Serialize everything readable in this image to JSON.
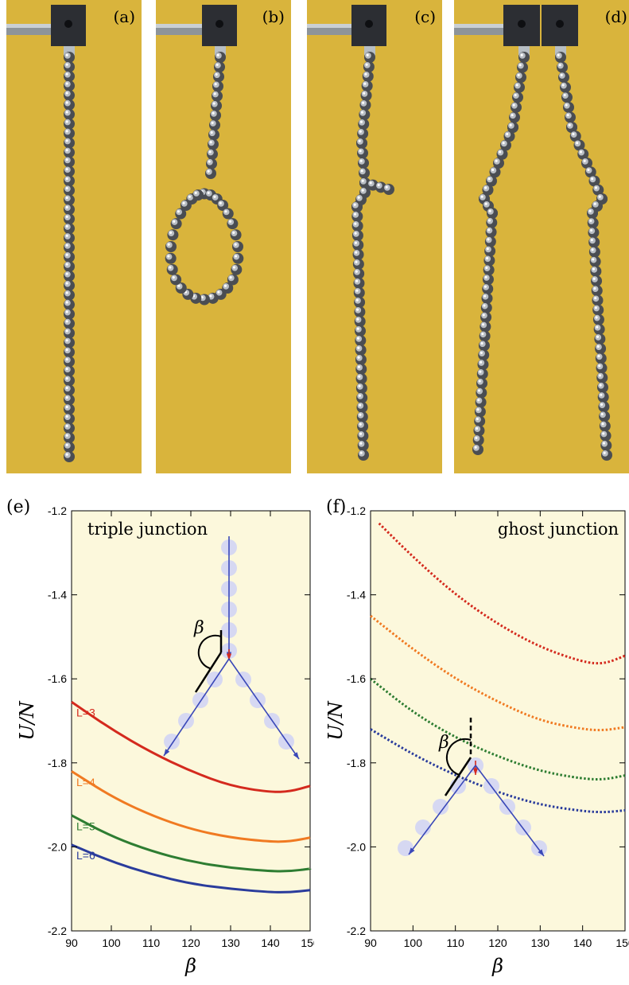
{
  "photos": [
    {
      "label": "(a)",
      "shape": "straight"
    },
    {
      "label": "(b)",
      "shape": "loop"
    },
    {
      "label": "(c)",
      "shape": "kink"
    },
    {
      "label": "(d)",
      "shape": "double"
    }
  ],
  "colors": {
    "photo_background": "#d9b43c",
    "plot_background": "#fcf8dc",
    "red": "#d42a1e",
    "orange": "#f07a22",
    "green": "#2e7d32",
    "blue": "#2a3c9c",
    "bead_arrow": "#3a48b8",
    "junction_arrow": "#d42a1e"
  },
  "chart_data": [
    {
      "panel": "(e)",
      "type": "line",
      "title": "triple junction",
      "xlabel": "β",
      "ylabel": "U/N",
      "xlim": [
        90,
        150
      ],
      "ylim": [
        -2.2,
        -1.2
      ],
      "xticks": [
        "90",
        "100",
        "110",
        "120",
        "130",
        "140",
        "150"
      ],
      "yticks": [
        "-1.2",
        "-1.4",
        "-1.6",
        "-1.8",
        "-2.0",
        "-2.2"
      ],
      "style": "solid",
      "inset_label": "β",
      "series": [
        {
          "name": "L=3",
          "color": "#d42a1e",
          "x": [
            90,
            100,
            110,
            120,
            130,
            140,
            145,
            150
          ],
          "values": [
            -1.655,
            -1.72,
            -1.775,
            -1.82,
            -1.855,
            -1.87,
            -1.868,
            -1.855
          ]
        },
        {
          "name": "L=4",
          "color": "#f07a22",
          "x": [
            90,
            100,
            110,
            120,
            130,
            140,
            145,
            150
          ],
          "values": [
            -1.82,
            -1.88,
            -1.925,
            -1.958,
            -1.978,
            -1.988,
            -1.987,
            -1.978
          ]
        },
        {
          "name": "L=5",
          "color": "#2e7d32",
          "x": [
            90,
            100,
            110,
            120,
            130,
            140,
            145,
            150
          ],
          "values": [
            -1.925,
            -1.975,
            -2.01,
            -2.035,
            -2.05,
            -2.058,
            -2.058,
            -2.052
          ]
        },
        {
          "name": "L=6",
          "color": "#2a3c9c",
          "x": [
            90,
            100,
            110,
            120,
            130,
            140,
            145,
            150
          ],
          "values": [
            -1.995,
            -2.035,
            -2.065,
            -2.088,
            -2.1,
            -2.108,
            -2.108,
            -2.103
          ]
        }
      ]
    },
    {
      "panel": "(f)",
      "type": "line",
      "title": "ghost junction",
      "xlabel": "β",
      "ylabel": "U/N",
      "xlim": [
        90,
        150
      ],
      "ylim": [
        -2.2,
        -1.2
      ],
      "xticks": [
        "90",
        "100",
        "110",
        "120",
        "130",
        "140",
        "150"
      ],
      "yticks": [
        "-1.2",
        "-1.4",
        "-1.6",
        "-1.8",
        "-2.0",
        "-2.2"
      ],
      "style": "dotted",
      "inset_label": "β",
      "series": [
        {
          "color": "#d42a1e",
          "x": [
            92,
            100,
            110,
            120,
            130,
            140,
            145,
            150
          ],
          "values": [
            -1.23,
            -1.31,
            -1.4,
            -1.47,
            -1.525,
            -1.56,
            -1.565,
            -1.545
          ]
        },
        {
          "color": "#f07a22",
          "x": [
            90,
            100,
            110,
            120,
            130,
            140,
            145,
            150
          ],
          "values": [
            -1.45,
            -1.53,
            -1.6,
            -1.655,
            -1.7,
            -1.72,
            -1.723,
            -1.715
          ]
        },
        {
          "color": "#2e7d32",
          "x": [
            90,
            100,
            110,
            120,
            130,
            140,
            145,
            150
          ],
          "values": [
            -1.6,
            -1.68,
            -1.74,
            -1.785,
            -1.82,
            -1.838,
            -1.84,
            -1.83
          ]
        },
        {
          "color": "#2a3c9c",
          "x": [
            90,
            100,
            110,
            120,
            130,
            140,
            145,
            150
          ],
          "values": [
            -1.72,
            -1.78,
            -1.83,
            -1.87,
            -1.9,
            -1.915,
            -1.918,
            -1.913
          ]
        }
      ]
    }
  ]
}
